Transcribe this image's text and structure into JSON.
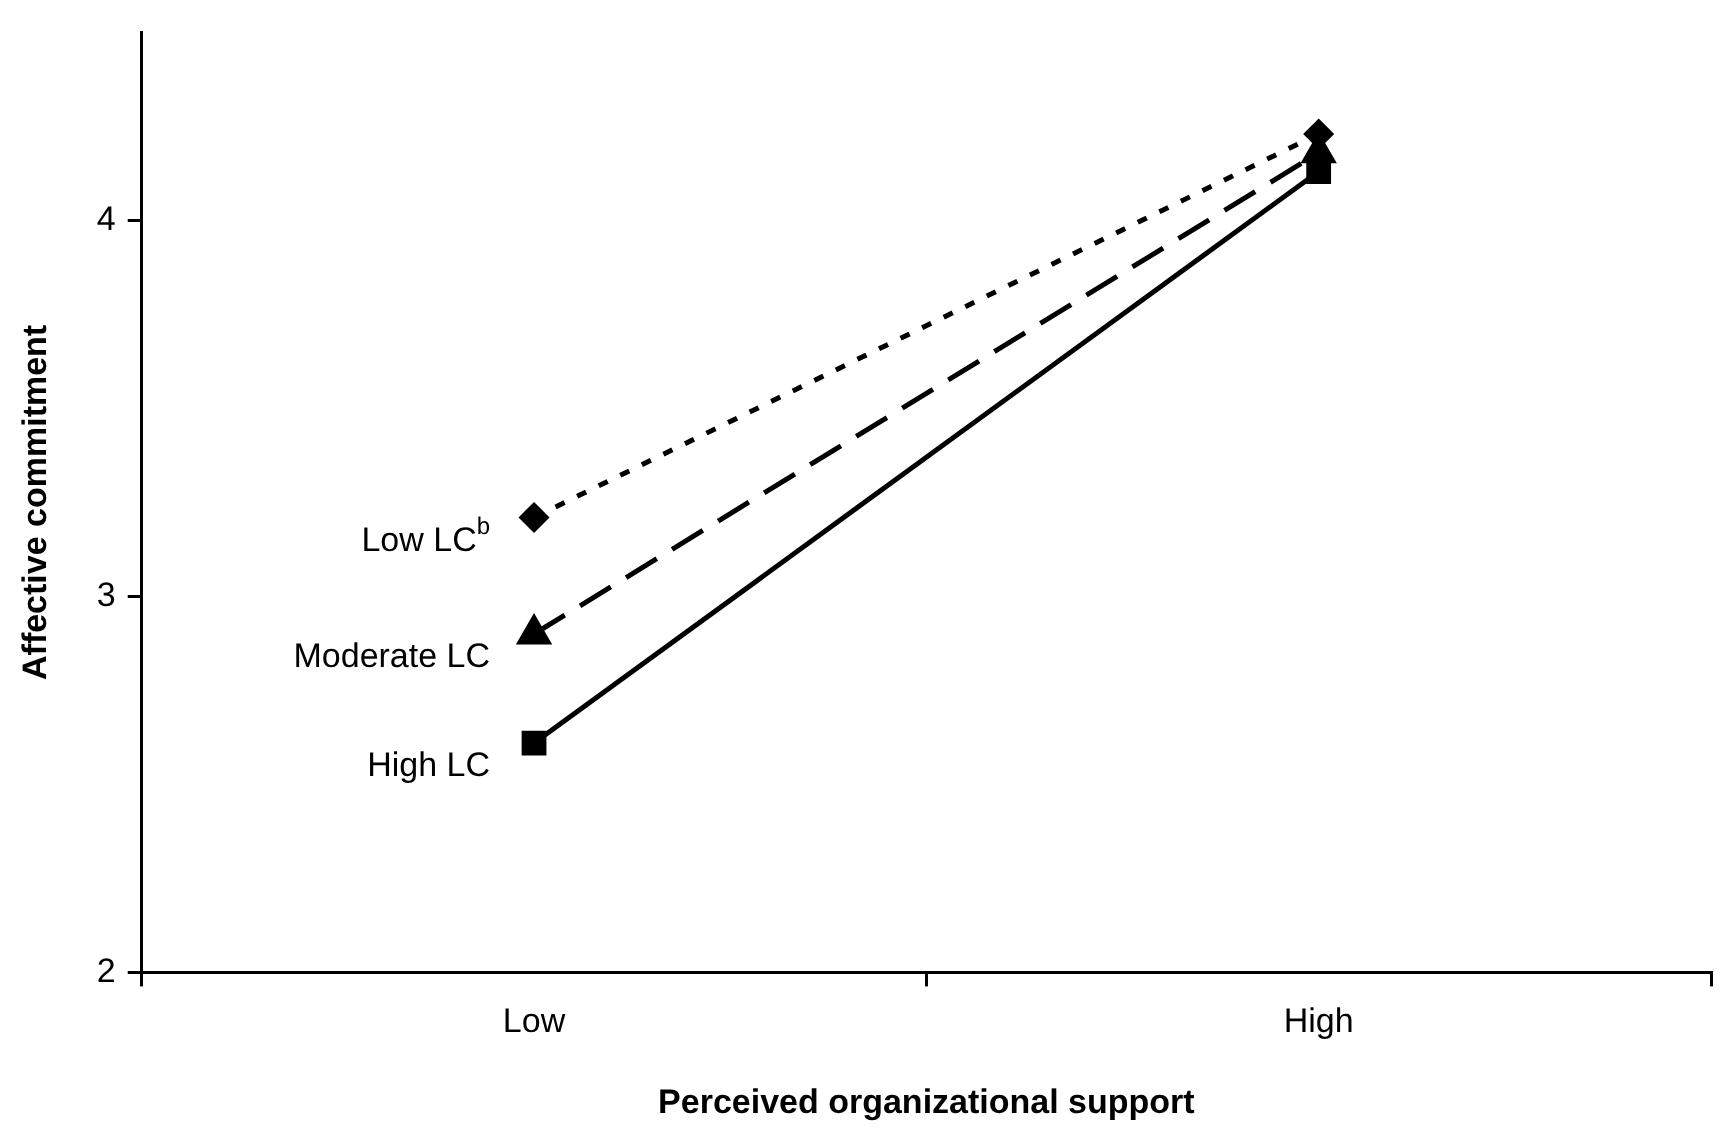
{
  "chart_data": {
    "type": "line",
    "xlabel": "Perceived organizational support",
    "ylabel": "Affective commitment",
    "categories": [
      "Low",
      "High"
    ],
    "ylim": [
      2,
      4.5
    ],
    "yticks": [
      2,
      3,
      4
    ],
    "grid": false,
    "legend": false,
    "series": [
      {
        "name": "Low LC$^{b}$",
        "color": "#000000",
        "marker": "diamond",
        "line_style": "dotted",
        "values": [
          3.21,
          4.23
        ]
      },
      {
        "name": "Moderate LC",
        "color": "#000000",
        "marker": "triangle",
        "line_style": "dashed",
        "values": [
          2.9,
          4.18
        ]
      },
      {
        "name": "High LC",
        "color": "#000000",
        "marker": "square",
        "line_style": "solid",
        "values": [
          2.61,
          4.13
        ]
      }
    ]
  }
}
